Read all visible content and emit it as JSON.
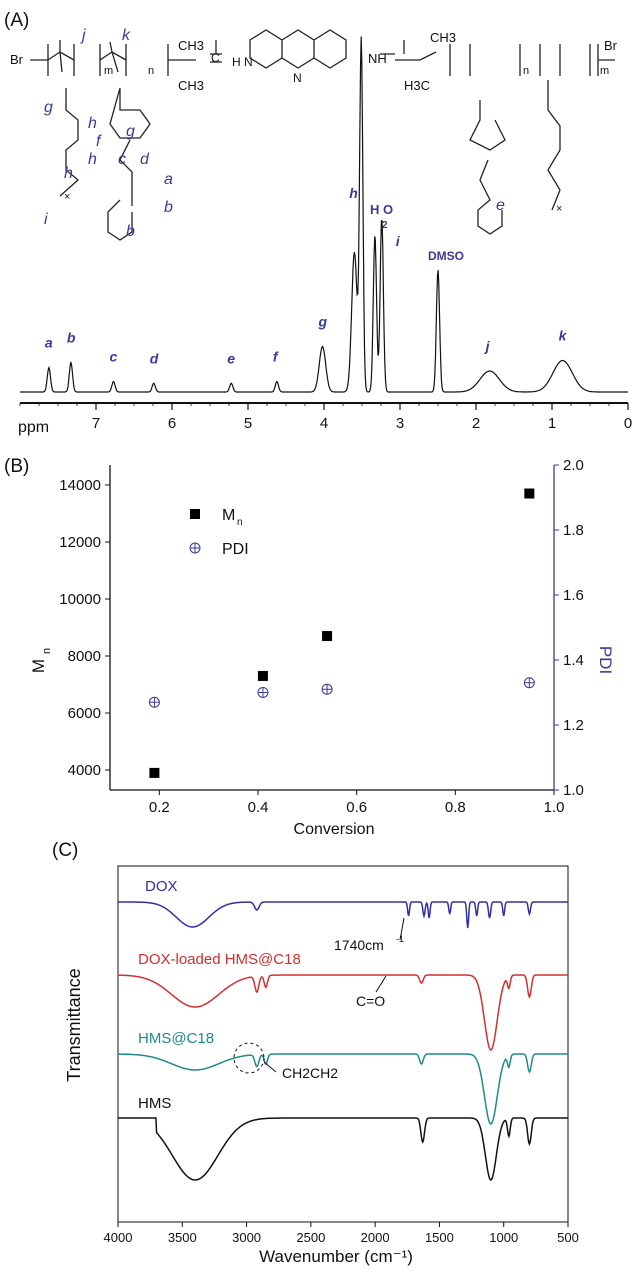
{
  "panels": {
    "a": "(A)",
    "b": "(B)",
    "c": "(C)"
  },
  "chart_data": [
    {
      "id": "A",
      "type": "line",
      "xlabel": "ppm",
      "xlim": [
        8,
        0
      ],
      "xticks": [
        7,
        6,
        5,
        4,
        3,
        2,
        1,
        0
      ],
      "grid": false,
      "structure_labels": {
        "br_left": "Br",
        "br_right": "Br",
        "m_left": "m",
        "n_left": "n",
        "n_right": "n",
        "m_right": "m",
        "nh_left": "H\nN",
        "nh_right": "NH",
        "n_acridine": "N",
        "ch3_1": "CH3",
        "ch3_2": "CH3",
        "ch3_3": "CH3",
        "h3c": "H3C",
        "c_amide": "C",
        "x_left": "×",
        "x_right": "×"
      },
      "greek_labels": [
        "j",
        "k",
        "g",
        "h",
        "h",
        "h",
        "i",
        "f",
        "g",
        "c",
        "d",
        "a",
        "b",
        "b",
        "e"
      ],
      "peaks": [
        {
          "label": "a",
          "ppm": 7.62,
          "height": 0.07
        },
        {
          "label": "b",
          "ppm": 7.33,
          "height": 0.085
        },
        {
          "label": "c",
          "ppm": 6.77,
          "height": 0.03
        },
        {
          "label": "d",
          "ppm": 6.24,
          "height": 0.025
        },
        {
          "label": "e",
          "ppm": 5.22,
          "height": 0.025
        },
        {
          "label": "f",
          "ppm": 4.62,
          "height": 0.03
        },
        {
          "label": "g",
          "ppm": 4.02,
          "height": 0.13
        },
        {
          "label": "h",
          "ppm": 3.51,
          "height": 1.0
        },
        {
          "label": "H2O",
          "ppm": 3.33,
          "height": 0.45
        },
        {
          "label": "i",
          "ppm": 3.24,
          "height": 0.5
        },
        {
          "label": "DMSO",
          "ppm": 2.5,
          "height": 0.35
        },
        {
          "label": "j",
          "ppm": 1.82,
          "height": 0.06
        },
        {
          "label": "k",
          "ppm": 0.86,
          "height": 0.09
        }
      ],
      "annotations": {
        "h2o": "H O",
        "h2o_sub": "2",
        "dmso": "DMSO"
      }
    },
    {
      "id": "B",
      "type": "scatter",
      "xlabel": "Conversion",
      "ylabel": "M",
      "ylabel_sub": "n",
      "ylabel_right": "PDI",
      "xlim": [
        0.1,
        1.0
      ],
      "ylim": [
        3300,
        14700
      ],
      "ylim_right": [
        1.0,
        2.0
      ],
      "xticks": [
        0.2,
        0.4,
        0.6,
        0.8,
        1.0
      ],
      "yticks": [
        4000,
        6000,
        8000,
        10000,
        12000,
        14000
      ],
      "yticks_right": [
        1.0,
        1.2,
        1.4,
        1.6,
        1.8,
        2.0
      ],
      "legend_position": "top-left",
      "series": [
        {
          "name": "M",
          "name_sub": "n",
          "marker": "square",
          "color": "#000000",
          "x": [
            0.19,
            0.41,
            0.54,
            0.95
          ],
          "y": [
            3900,
            7300,
            8700,
            13700
          ]
        },
        {
          "name": "PDI",
          "marker": "circle-plus",
          "color": "#3a3a9a",
          "axis": "right",
          "x": [
            0.19,
            0.41,
            0.54,
            0.95
          ],
          "y": [
            1.27,
            1.3,
            1.31,
            1.33
          ]
        }
      ]
    },
    {
      "id": "C",
      "type": "line",
      "xlabel": "Wavenumber (cm⁻¹)",
      "ylabel": "Transmittance",
      "xlim": [
        4000,
        500
      ],
      "xticks": [
        4000,
        3500,
        3000,
        2500,
        2000,
        1500,
        1000,
        500
      ],
      "series": [
        {
          "name": "DOX",
          "color": "#3030a0"
        },
        {
          "name": "DOX-loaded HMS@C18",
          "color": "#d03030"
        },
        {
          "name": "HMS@C18",
          "color": "#1e8a8a"
        },
        {
          "name": "HMS",
          "color": "#111111"
        }
      ],
      "annotations": {
        "peak_1740": "1740cm",
        "peak_1740_sup": "-1",
        "co": "C=O",
        "ch2ch2": "CH2CH2"
      }
    }
  ]
}
